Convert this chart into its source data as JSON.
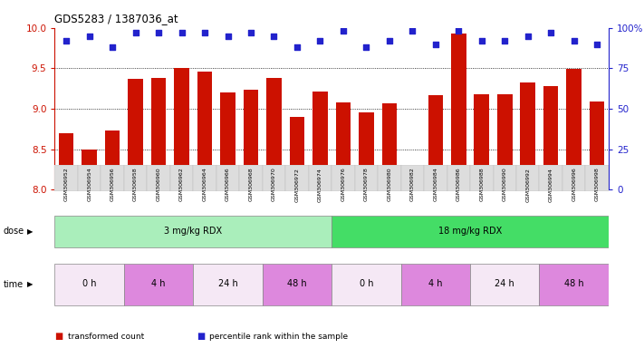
{
  "title": "GDS5283 / 1387036_at",
  "samples": [
    "GSM306952",
    "GSM306954",
    "GSM306956",
    "GSM306958",
    "GSM306960",
    "GSM306962",
    "GSM306964",
    "GSM306966",
    "GSM306968",
    "GSM306970",
    "GSM306972",
    "GSM306974",
    "GSM306976",
    "GSM306978",
    "GSM306980",
    "GSM306982",
    "GSM306984",
    "GSM306986",
    "GSM306988",
    "GSM306990",
    "GSM306992",
    "GSM306994",
    "GSM306996",
    "GSM306998"
  ],
  "bar_values": [
    8.7,
    8.5,
    8.73,
    9.37,
    9.38,
    9.5,
    9.46,
    9.2,
    9.23,
    9.38,
    8.9,
    9.21,
    9.08,
    8.95,
    9.07,
    8.13,
    9.17,
    9.93,
    9.18,
    9.18,
    9.32,
    9.28,
    9.49,
    9.09
  ],
  "percentile_values": [
    92,
    95,
    88,
    97,
    97,
    97,
    97,
    95,
    97,
    95,
    88,
    92,
    98,
    88,
    92,
    98,
    90,
    98,
    92,
    92,
    95,
    97,
    92,
    90
  ],
  "bar_color": "#cc1100",
  "dot_color": "#2222cc",
  "ylim_left": [
    8.0,
    10.0
  ],
  "ylim_right": [
    0,
    100
  ],
  "yticks_left": [
    8.0,
    8.5,
    9.0,
    9.5,
    10.0
  ],
  "yticks_right": [
    0,
    25,
    50,
    75,
    100
  ],
  "ytick_labels_right": [
    "0",
    "25",
    "50",
    "75",
    "100%"
  ],
  "grid_values": [
    8.5,
    9.0,
    9.5
  ],
  "dose_groups": [
    {
      "label": "3 mg/kg RDX",
      "start": 0,
      "end": 12,
      "color": "#aaeebb"
    },
    {
      "label": "18 mg/kg RDX",
      "start": 12,
      "end": 24,
      "color": "#44dd66"
    }
  ],
  "time_groups": [
    {
      "label": "0 h",
      "start": 0,
      "end": 3,
      "color": "#f5e8f5"
    },
    {
      "label": "4 h",
      "start": 3,
      "end": 6,
      "color": "#dd88dd"
    },
    {
      "label": "24 h",
      "start": 6,
      "end": 9,
      "color": "#f5e8f5"
    },
    {
      "label": "48 h",
      "start": 9,
      "end": 12,
      "color": "#dd88dd"
    },
    {
      "label": "0 h",
      "start": 12,
      "end": 15,
      "color": "#f5e8f5"
    },
    {
      "label": "4 h",
      "start": 15,
      "end": 18,
      "color": "#dd88dd"
    },
    {
      "label": "24 h",
      "start": 18,
      "end": 21,
      "color": "#f5e8f5"
    },
    {
      "label": "48 h",
      "start": 21,
      "end": 24,
      "color": "#dd88dd"
    }
  ],
  "legend_items": [
    {
      "color": "#cc1100",
      "label": "transformed count"
    },
    {
      "color": "#2222cc",
      "label": "percentile rank within the sample"
    }
  ],
  "bg_color": "#ffffff",
  "tick_color_left": "#cc1100",
  "tick_color_right": "#2222cc",
  "xtick_bg": "#dddddd"
}
